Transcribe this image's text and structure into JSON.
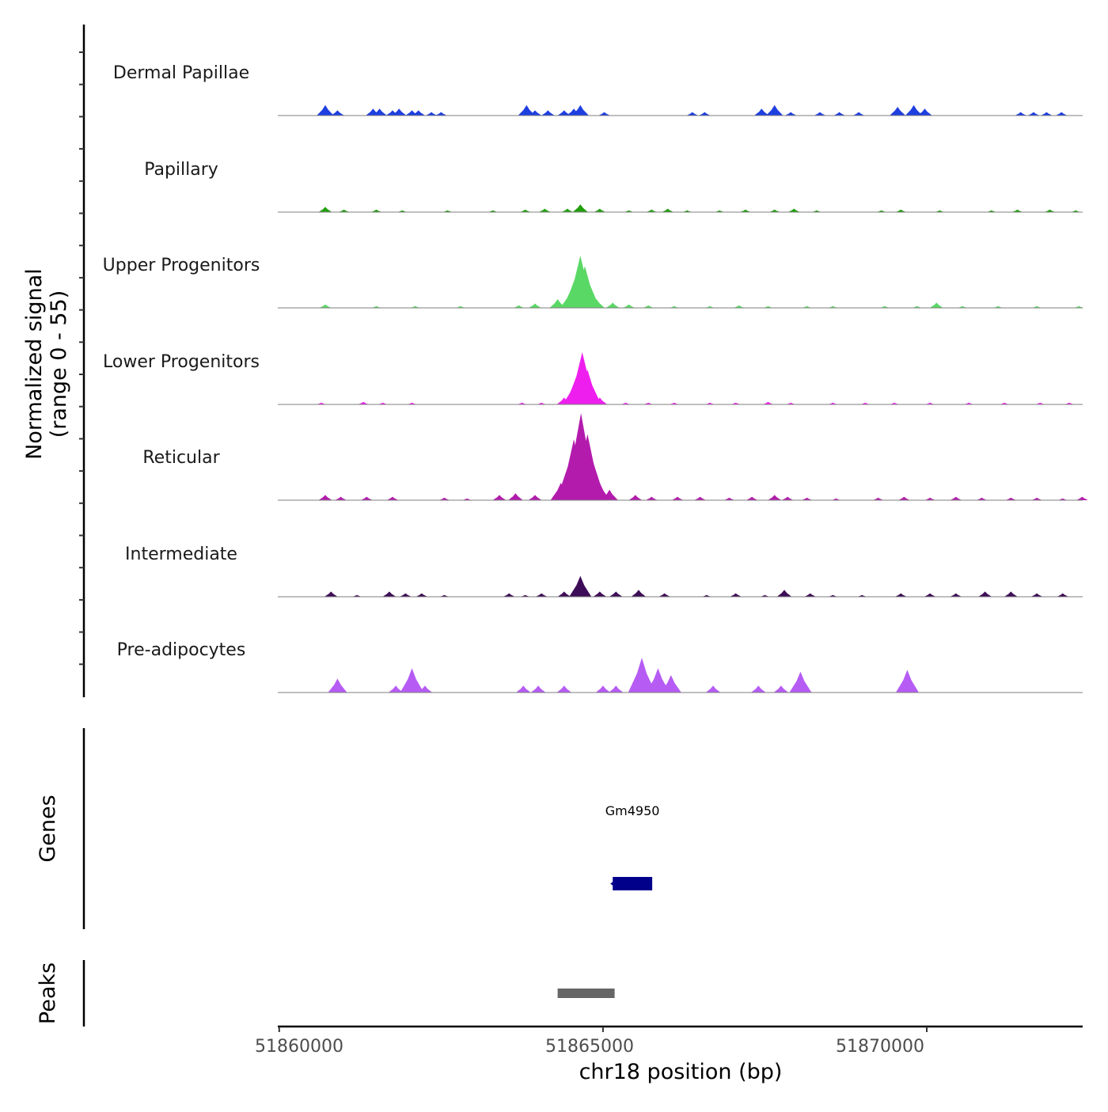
{
  "chart_data": {
    "type": "area",
    "y_axis": {
      "label_line1": "Normalized signal",
      "label_line2": "(range 0 - 55)",
      "ylim": [
        0,
        55
      ]
    },
    "x_axis": {
      "label": "chr18 position (bp)",
      "xlim": [
        51859978,
        51872408
      ],
      "ticks": [
        "51860000",
        "51865000",
        "51870000"
      ],
      "tick_values": [
        51860000,
        51865000,
        51870000
      ]
    },
    "tracks": [
      {
        "name": "Dermal Papillae",
        "color": "#1E3FE0",
        "peaks": [
          [
            51860711,
            6
          ],
          [
            51860900,
            3
          ],
          [
            51861450,
            4
          ],
          [
            51861550,
            4
          ],
          [
            51861750,
            3
          ],
          [
            51861850,
            4
          ],
          [
            51862050,
            3
          ],
          [
            51862150,
            3
          ],
          [
            51862350,
            2
          ],
          [
            51862500,
            2
          ],
          [
            51863820,
            6
          ],
          [
            51863950,
            3
          ],
          [
            51864150,
            3
          ],
          [
            51864400,
            3
          ],
          [
            51864550,
            4
          ],
          [
            51864650,
            6
          ],
          [
            51865020,
            2
          ],
          [
            51866380,
            2
          ],
          [
            51866570,
            2
          ],
          [
            51867450,
            4
          ],
          [
            51867650,
            6
          ],
          [
            51867900,
            2
          ],
          [
            51868350,
            2
          ],
          [
            51868650,
            2
          ],
          [
            51868950,
            2
          ],
          [
            51869550,
            5
          ],
          [
            51869800,
            6
          ],
          [
            51869970,
            4
          ],
          [
            51871450,
            2
          ],
          [
            51871650,
            2
          ],
          [
            51871850,
            2
          ],
          [
            51872080,
            2
          ]
        ]
      },
      {
        "name": "Papillary",
        "color": "#22A00F",
        "peaks": [
          [
            51860711,
            3
          ],
          [
            51861000,
            1.5
          ],
          [
            51861500,
            1.5
          ],
          [
            51861900,
            1
          ],
          [
            51862600,
            1
          ],
          [
            51863300,
            1
          ],
          [
            51863800,
            1.5
          ],
          [
            51864100,
            2
          ],
          [
            51864450,
            2
          ],
          [
            51864650,
            4.5
          ],
          [
            51864950,
            2
          ],
          [
            51865400,
            1
          ],
          [
            51865750,
            1.5
          ],
          [
            51866000,
            2
          ],
          [
            51866300,
            1
          ],
          [
            51866800,
            1
          ],
          [
            51867200,
            1.5
          ],
          [
            51867650,
            1.5
          ],
          [
            51867950,
            2
          ],
          [
            51868300,
            1
          ],
          [
            51869300,
            1
          ],
          [
            51869600,
            1.5
          ],
          [
            51870200,
            1
          ],
          [
            51871000,
            1
          ],
          [
            51871400,
            1.5
          ],
          [
            51871900,
            1.5
          ],
          [
            51872300,
            1
          ]
        ]
      },
      {
        "name": "Upper Progenitors",
        "color": "#5AD865",
        "peaks": [
          [
            51860711,
            2
          ],
          [
            51861500,
            1
          ],
          [
            51862100,
            1
          ],
          [
            51862800,
            1
          ],
          [
            51863700,
            1.5
          ],
          [
            51863950,
            2.5
          ],
          [
            51864300,
            5
          ],
          [
            51864500,
            10
          ],
          [
            51864650,
            30
          ],
          [
            51864720,
            24
          ],
          [
            51864900,
            5
          ],
          [
            51865150,
            3
          ],
          [
            51865400,
            2
          ],
          [
            51865700,
            1.5
          ],
          [
            51866100,
            1
          ],
          [
            51866650,
            1
          ],
          [
            51867100,
            1.5
          ],
          [
            51867550,
            1
          ],
          [
            51868150,
            1
          ],
          [
            51868550,
            1
          ],
          [
            51869350,
            1
          ],
          [
            51869850,
            1
          ],
          [
            51870150,
            3
          ],
          [
            51870550,
            1
          ],
          [
            51871100,
            1
          ],
          [
            51871700,
            1
          ],
          [
            51872350,
            1
          ]
        ]
      },
      {
        "name": "Lower Progenitors",
        "color": "#EE1FEE",
        "peaks": [
          [
            51860650,
            1
          ],
          [
            51861300,
            1.5
          ],
          [
            51861600,
            1
          ],
          [
            51862050,
            1
          ],
          [
            51863750,
            1
          ],
          [
            51864050,
            1
          ],
          [
            51864400,
            4
          ],
          [
            51864550,
            12
          ],
          [
            51864680,
            30
          ],
          [
            51864760,
            20
          ],
          [
            51864950,
            4
          ],
          [
            51865350,
            1
          ],
          [
            51865700,
            1
          ],
          [
            51866100,
            1
          ],
          [
            51866650,
            1
          ],
          [
            51867050,
            1
          ],
          [
            51867550,
            1.5
          ],
          [
            51867900,
            1
          ],
          [
            51868550,
            1
          ],
          [
            51869050,
            1
          ],
          [
            51869500,
            1
          ],
          [
            51870050,
            1
          ],
          [
            51870650,
            1
          ],
          [
            51871200,
            1
          ],
          [
            51871750,
            1
          ],
          [
            51872200,
            1
          ]
        ]
      },
      {
        "name": "Reticular",
        "color": "#B31BAD",
        "peaks": [
          [
            51860711,
            3
          ],
          [
            51860950,
            2
          ],
          [
            51861350,
            2
          ],
          [
            51861750,
            2
          ],
          [
            51862550,
            1.5
          ],
          [
            51862900,
            1
          ],
          [
            51863400,
            3
          ],
          [
            51863650,
            4
          ],
          [
            51863950,
            3
          ],
          [
            51864350,
            10
          ],
          [
            51864550,
            35
          ],
          [
            51864660,
            50
          ],
          [
            51864760,
            38
          ],
          [
            51864950,
            10
          ],
          [
            51865100,
            6
          ],
          [
            51865500,
            3
          ],
          [
            51865750,
            2
          ],
          [
            51866150,
            2
          ],
          [
            51866500,
            2
          ],
          [
            51866950,
            1.5
          ],
          [
            51867300,
            2
          ],
          [
            51867650,
            3
          ],
          [
            51867850,
            2
          ],
          [
            51868150,
            1.5
          ],
          [
            51868600,
            1
          ],
          [
            51869250,
            1.5
          ],
          [
            51869650,
            2
          ],
          [
            51870050,
            1.5
          ],
          [
            51870450,
            2
          ],
          [
            51870850,
            1.5
          ],
          [
            51871300,
            1.5
          ],
          [
            51871700,
            1.5
          ],
          [
            51872100,
            1
          ],
          [
            51872400,
            2
          ]
        ]
      },
      {
        "name": "Intermediate",
        "color": "#3E0D57",
        "peaks": [
          [
            51860800,
            3
          ],
          [
            51861200,
            1
          ],
          [
            51861700,
            3
          ],
          [
            51861950,
            2
          ],
          [
            51862200,
            2
          ],
          [
            51862550,
            1
          ],
          [
            51863550,
            2
          ],
          [
            51863800,
            1
          ],
          [
            51864050,
            2
          ],
          [
            51864400,
            3
          ],
          [
            51864650,
            12
          ],
          [
            51864950,
            3
          ],
          [
            51865200,
            3
          ],
          [
            51865550,
            4
          ],
          [
            51865950,
            2
          ],
          [
            51866600,
            1
          ],
          [
            51867050,
            2
          ],
          [
            51867500,
            1
          ],
          [
            51867800,
            4
          ],
          [
            51868200,
            2
          ],
          [
            51868550,
            1
          ],
          [
            51869000,
            1
          ],
          [
            51869600,
            2
          ],
          [
            51870050,
            2
          ],
          [
            51870450,
            2
          ],
          [
            51870900,
            3
          ],
          [
            51871300,
            3
          ],
          [
            51871700,
            2
          ],
          [
            51872100,
            2
          ]
        ]
      },
      {
        "name": "Pre-adipocytes",
        "color": "#B65CF4",
        "peaks": [
          [
            51860900,
            8
          ],
          [
            51861800,
            4
          ],
          [
            51862050,
            14
          ],
          [
            51862250,
            4
          ],
          [
            51863770,
            4
          ],
          [
            51864000,
            4
          ],
          [
            51864400,
            4
          ],
          [
            51865000,
            4
          ],
          [
            51865200,
            4
          ],
          [
            51865600,
            20
          ],
          [
            51865850,
            14
          ],
          [
            51866050,
            10
          ],
          [
            51866700,
            4
          ],
          [
            51867400,
            4
          ],
          [
            51867750,
            4
          ],
          [
            51868050,
            12
          ],
          [
            51869700,
            13
          ]
        ]
      }
    ],
    "genes_panel": {
      "label": "Genes",
      "genes": [
        {
          "name": "Gm4950",
          "start": 51865150,
          "end": 51865760,
          "color": "#00008B"
        }
      ]
    },
    "peaks_panel": {
      "label": "Peaks",
      "regions": [
        {
          "start": 51864300,
          "end": 51865180,
          "color": "#666666"
        }
      ]
    }
  }
}
